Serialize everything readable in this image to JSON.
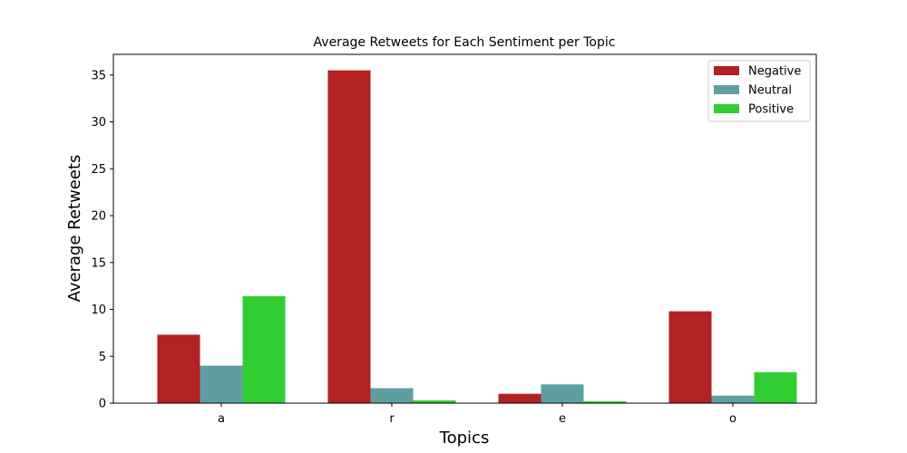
{
  "chart_data": {
    "type": "bar",
    "title": "Average Retweets for Each Sentiment per Topic",
    "xlabel": "Topics",
    "ylabel": "Average Retweets",
    "categories": [
      "a",
      "r",
      "e",
      "o"
    ],
    "series": [
      {
        "name": "Negative",
        "color": "#b22222",
        "values": [
          7.3,
          35.5,
          1.0,
          9.8
        ]
      },
      {
        "name": "Neutral",
        "color": "#5f9ea0",
        "values": [
          4.0,
          1.6,
          2.0,
          0.8
        ]
      },
      {
        "name": "Positive",
        "color": "#32cd32",
        "values": [
          11.4,
          0.3,
          0.2,
          3.3
        ]
      }
    ],
    "ylim": [
      0,
      37.2
    ],
    "yticks": [
      0,
      5,
      10,
      15,
      20,
      25,
      30,
      35
    ],
    "grid": false,
    "legend_position": "top-right"
  }
}
